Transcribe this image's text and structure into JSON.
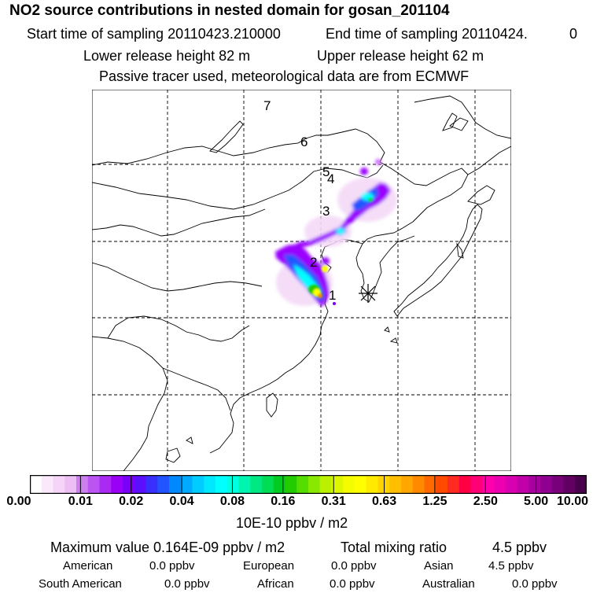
{
  "header": {
    "title": "NO2 source contributions in nested domain for gosan_201104",
    "start_label": "Start time of sampling 20110423.210000",
    "end_label": "End time of sampling 20110424.",
    "end_suffix": "0",
    "lower_release": "Lower release height   82 m",
    "upper_release": "Upper release height   62 m",
    "tracer_note": "Passive tracer used, meteorological data are from ECMWF"
  },
  "map": {
    "trajectory_labels": [
      "1",
      "2",
      "3",
      "4",
      "5",
      "6",
      "7"
    ],
    "receptor_marker": "asterisk-icon",
    "colors": {
      "low": "#f4d9f7",
      "mid_low": "#9900ff",
      "mid": "#00ffff",
      "mid_high": "#ffff00",
      "high": "#ff0000"
    }
  },
  "colorbar": {
    "tick_labels": [
      "0.00",
      "0.01",
      "0.02",
      "0.04",
      "0.08",
      "0.16",
      "0.31",
      "0.63",
      "1.25",
      "2.50",
      "5.00",
      "10.00"
    ],
    "unit": "10E-10 ppbv / m2",
    "colors": [
      "#ffffff",
      "#fbe9fb",
      "#f4d4f7",
      "#ecbef4",
      "#cc80f0",
      "#bb55f2",
      "#aa2af4",
      "#9900f5",
      "#7a00f8",
      "#5a10fc",
      "#3a30fe",
      "#2255ff",
      "#0088ff",
      "#00aaff",
      "#00ccff",
      "#00e8ff",
      "#00ffff",
      "#00ffdd",
      "#00f5b0",
      "#00e884",
      "#00dd55",
      "#00cc22",
      "#22cc00",
      "#55dd00",
      "#88e800",
      "#bbf000",
      "#ddf700",
      "#f5fb00",
      "#ffff00",
      "#ffea00",
      "#ffd400",
      "#ffbe00",
      "#ffa600",
      "#ff8a00",
      "#ff6a00",
      "#ff4a00",
      "#ff2a22",
      "#ff0044",
      "#ff0077",
      "#ff00aa",
      "#ee00b0",
      "#d800b0",
      "#c000a8",
      "#a800a0",
      "#900090",
      "#780078",
      "#600060",
      "#48004c"
    ]
  },
  "summary": {
    "max_value": "Maximum value  0.164E-09 ppbv / m2",
    "total_mixing": "Total mixing ratio",
    "total_value": "4.5 ppbv",
    "regions": [
      {
        "name": "American",
        "value": "0.0 ppbv"
      },
      {
        "name": "European",
        "value": "0.0 ppbv"
      },
      {
        "name": "Asian",
        "value": "4.5 ppbv"
      },
      {
        "name": "South American",
        "value": "0.0 ppbv"
      },
      {
        "name": "African",
        "value": "0.0 ppbv"
      },
      {
        "name": "Australian",
        "value": "0.0 ppbv"
      }
    ]
  }
}
